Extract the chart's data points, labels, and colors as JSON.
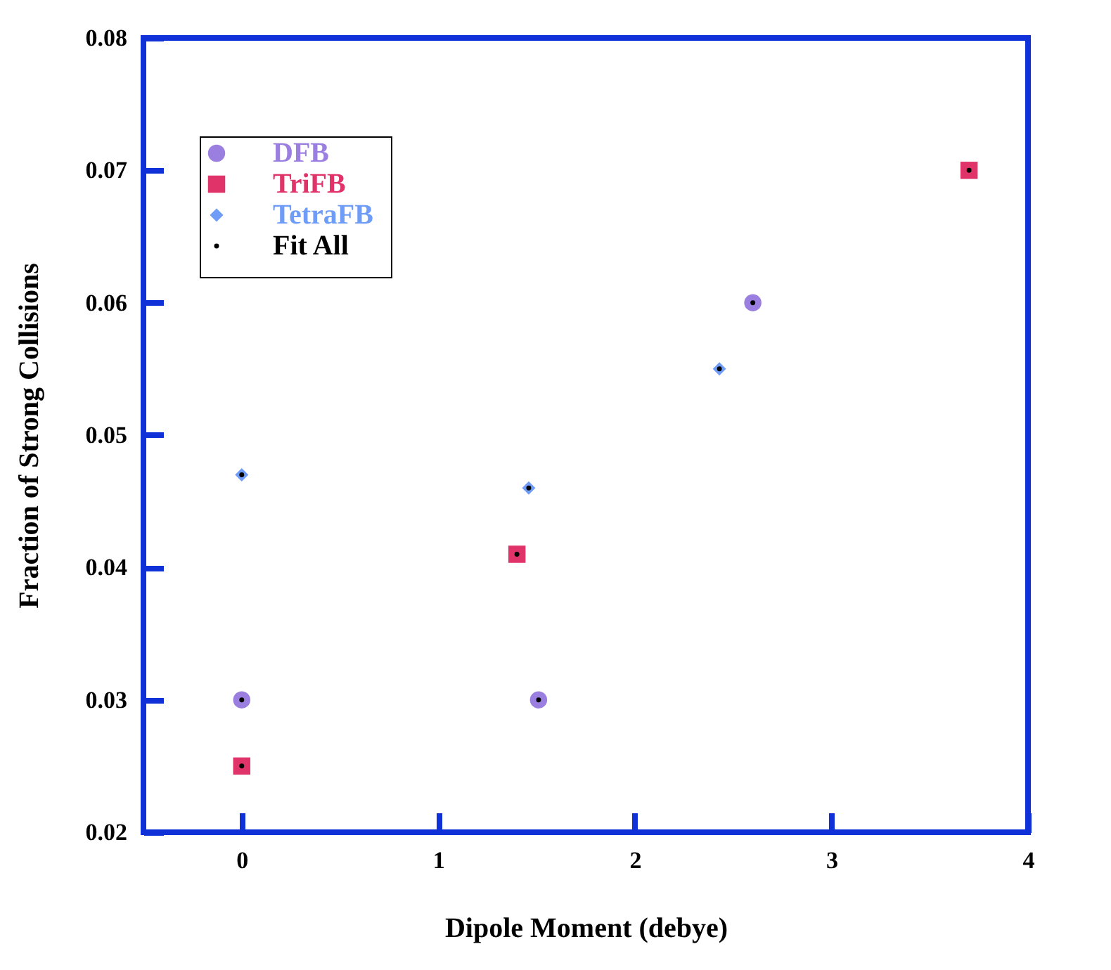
{
  "chart_data": {
    "type": "scatter",
    "xlabel": "Dipole Moment (debye)",
    "ylabel": "Fraction of Strong Collisions",
    "xlim": [
      -0.5,
      4
    ],
    "xticks": [
      0,
      1,
      2,
      3,
      4
    ],
    "ylim": [
      0.02,
      0.08
    ],
    "yticks": [
      0.02,
      0.03,
      0.04,
      0.05,
      0.06,
      0.07,
      0.08
    ],
    "grid": false,
    "legend": "top left",
    "series": [
      {
        "name": "DFB",
        "color": "#9b7fe0",
        "marker": "circle",
        "x": [
          0,
          1.51,
          2.6
        ],
        "values": [
          0.03,
          0.03,
          0.06
        ]
      },
      {
        "name": "TriFB",
        "color": "#e0336a",
        "marker": "square",
        "x": [
          0,
          1.4,
          3.7
        ],
        "values": [
          0.025,
          0.041,
          0.07
        ]
      },
      {
        "name": "TetraFB",
        "color": "#6f9cf7",
        "marker": "diamond",
        "x": [
          0,
          1.46,
          2.43
        ],
        "values": [
          0.047,
          0.046,
          0.055
        ]
      },
      {
        "name": "Fit All",
        "color": "#000000",
        "marker": "circle",
        "x": [
          0,
          1.51,
          2.6,
          0,
          1.4,
          3.7,
          0,
          1.46,
          2.43
        ],
        "values": [
          0.03,
          0.03,
          0.06,
          0.025,
          0.041,
          0.07,
          0.047,
          0.046,
          0.055
        ]
      }
    ]
  }
}
